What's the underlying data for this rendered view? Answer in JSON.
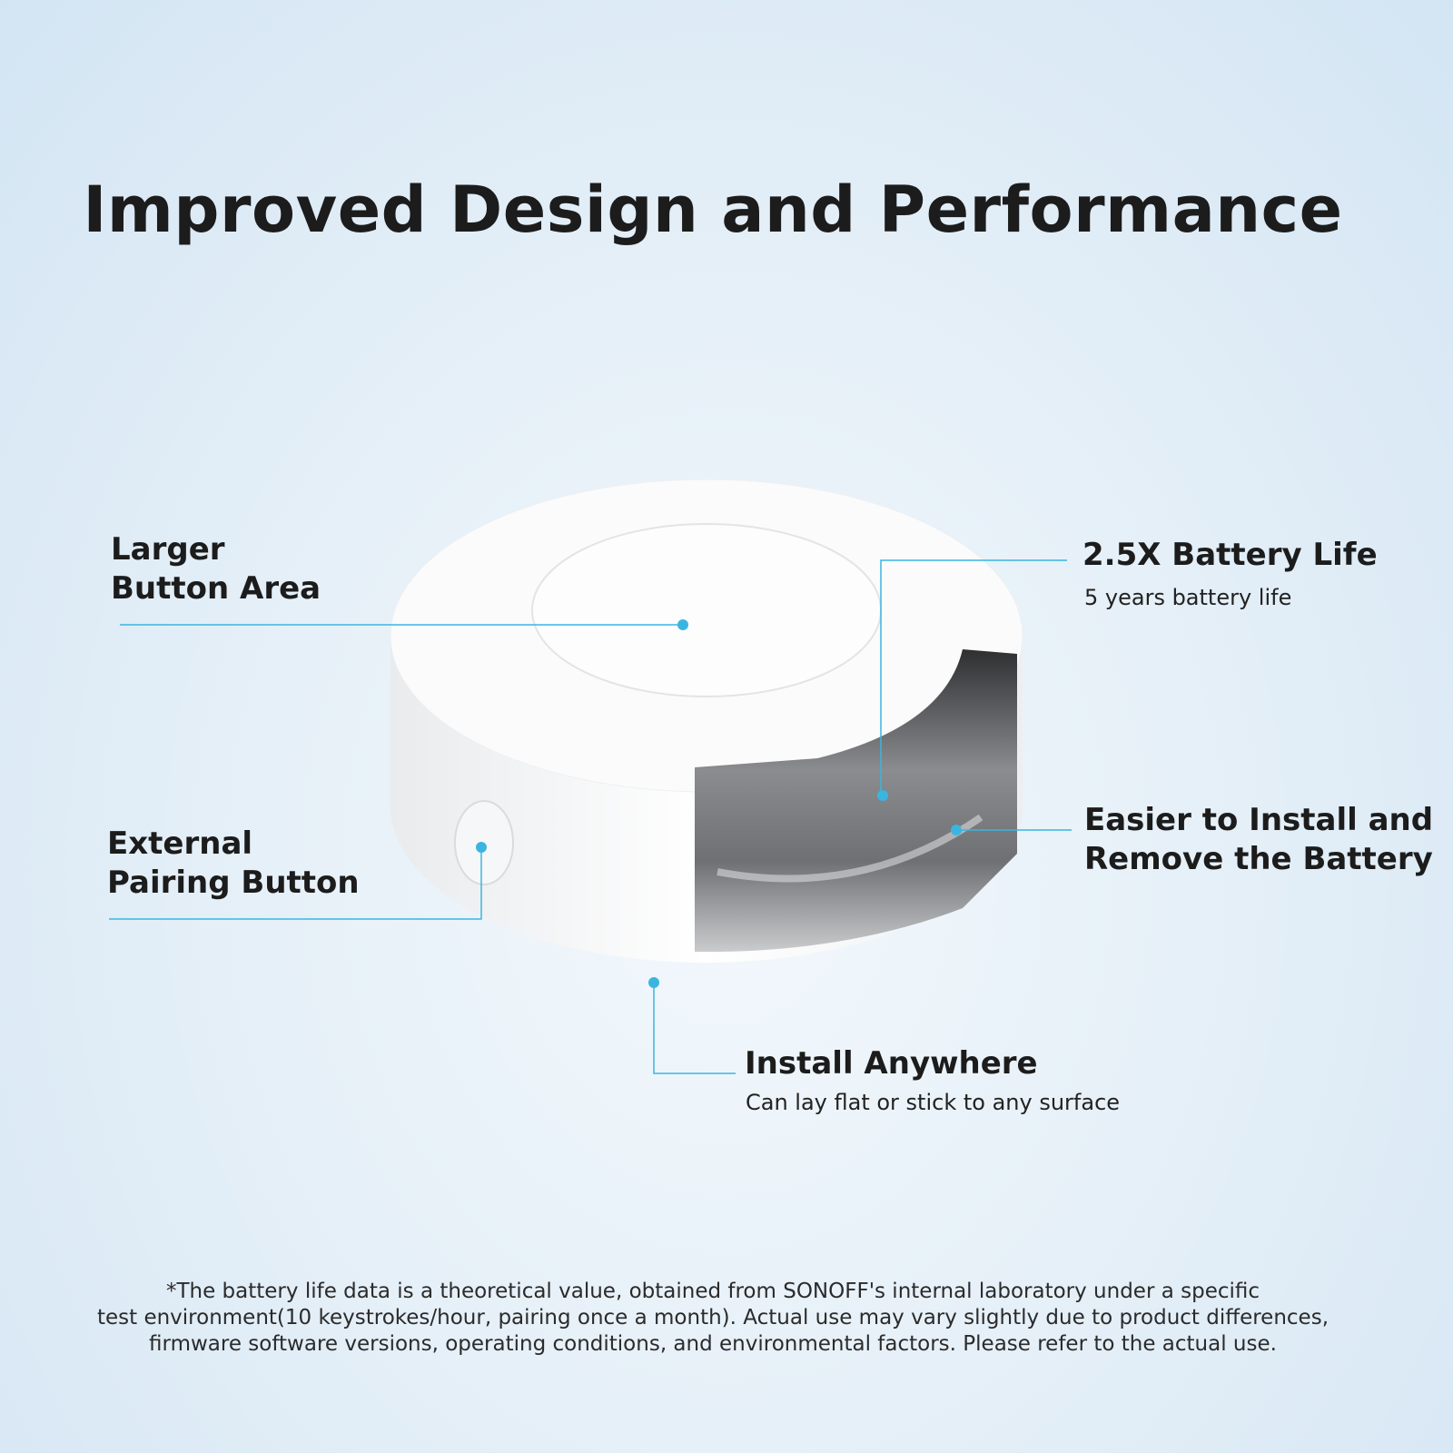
{
  "title": "Improved Design and Performance",
  "accent_color": "#3bb5e0",
  "callouts": {
    "larger_button": {
      "line1": "Larger",
      "line2": "Button Area"
    },
    "battery_life": {
      "title": "2.5X Battery Life",
      "subtitle": "5 years battery life"
    },
    "pairing_button": {
      "line1": "External",
      "line2": "Pairing Button"
    },
    "battery_install": {
      "line1": "Easier to Install and",
      "line2": "Remove the Battery"
    },
    "install_anywhere": {
      "title": "Install Anywhere",
      "subtitle": "Can lay flat or stick to any surface"
    }
  },
  "footnote": {
    "line1": "*The battery life data is a theoretical value, obtained from SONOFF's internal laboratory under a specific",
    "line2": "test environment(10 keystrokes/hour, pairing once a month). Actual use may vary slightly due to product differences,",
    "line3": "firmware software versions, operating conditions, and environmental factors. Please refer to the actual use."
  }
}
